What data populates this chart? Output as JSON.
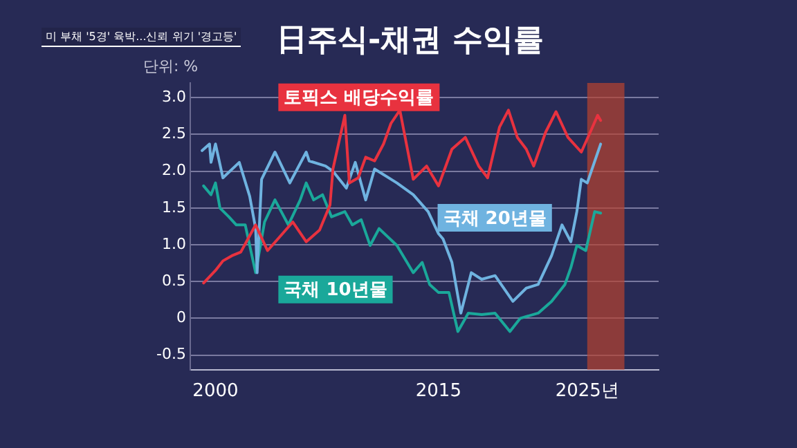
{
  "chart_data": {
    "type": "line",
    "title": "日주식-채권 수익률",
    "ylabel": "단위: %",
    "annotations": [
      "미 부채 '5경' 육박...신뢰 위기 '경고등'"
    ],
    "series": [
      {
        "name": "토픽스 배당수익률",
        "color": "#e8323f",
        "x": [
          1999.2,
          2000.0,
          2000.5,
          2001.1,
          2001.7,
          2002.7,
          2003.5,
          2004.2,
          2005.2,
          2006.1,
          2007.0,
          2007.7,
          2007.9,
          2008.7,
          2009.0,
          2009.6,
          2010.1,
          2010.7,
          2011.3,
          2011.8,
          2012.4,
          2013.3,
          2014.2,
          2015.0,
          2015.9,
          2016.8,
          2017.7,
          2018.3,
          2019.1,
          2019.7,
          2020.3,
          2020.9,
          2021.4,
          2022.2,
          2022.9,
          2023.7,
          2024.6,
          2025.2,
          2025.7,
          2025.9
        ],
        "values": [
          0.48,
          0.65,
          0.78,
          0.85,
          0.9,
          1.27,
          0.92,
          1.08,
          1.31,
          1.04,
          1.2,
          1.54,
          2.03,
          2.76,
          1.84,
          1.91,
          2.19,
          2.14,
          2.37,
          2.65,
          2.83,
          1.89,
          2.07,
          1.8,
          2.3,
          2.46,
          2.07,
          1.91,
          2.6,
          2.83,
          2.46,
          2.3,
          2.07,
          2.53,
          2.81,
          2.46,
          2.26,
          2.53,
          2.76,
          2.69
        ]
      },
      {
        "name": "국채 20년물",
        "color": "#6fb3e0",
        "x": [
          1999.1,
          1999.6,
          1999.7,
          2000.0,
          2000.5,
          2001.6,
          2002.3,
          2002.7,
          2002.8,
          2003.1,
          2004.0,
          2005.0,
          2006.1,
          2006.3,
          2007.4,
          2007.9,
          2008.8,
          2009.4,
          2010.1,
          2010.7,
          2012.2,
          2013.3,
          2014.3,
          2015.0,
          2015.3,
          2015.9,
          2016.5,
          2017.2,
          2017.9,
          2018.8,
          2020.0,
          2020.9,
          2021.7,
          2022.6,
          2023.3,
          2023.9,
          2024.3,
          2024.6,
          2025.0,
          2025.9
        ],
        "values": [
          2.28,
          2.37,
          2.12,
          2.37,
          1.91,
          2.12,
          1.66,
          1.22,
          0.62,
          1.89,
          2.26,
          1.84,
          2.26,
          2.14,
          2.07,
          2.0,
          1.77,
          2.12,
          1.61,
          2.03,
          1.84,
          1.68,
          1.45,
          1.15,
          1.08,
          0.76,
          0.07,
          0.62,
          0.53,
          0.58,
          0.23,
          0.41,
          0.46,
          0.85,
          1.27,
          1.04,
          1.45,
          1.89,
          1.84,
          2.37
        ]
      },
      {
        "name": "국채 10년물",
        "color": "#1aa89a",
        "x": [
          1999.2,
          1999.7,
          2000.0,
          2000.3,
          2000.9,
          2001.4,
          2002.0,
          2002.7,
          2003.3,
          2004.0,
          2004.9,
          2005.7,
          2006.1,
          2006.6,
          2007.2,
          2007.8,
          2008.7,
          2009.2,
          2009.8,
          2010.4,
          2011.0,
          2012.2,
          2013.3,
          2013.9,
          2014.4,
          2015.0,
          2015.7,
          2016.3,
          2017.0,
          2017.9,
          2018.8,
          2019.8,
          2020.5,
          2021.7,
          2022.6,
          2023.5,
          2023.9,
          2024.3,
          2024.9,
          2025.5,
          2025.9
        ],
        "values": [
          1.8,
          1.68,
          1.84,
          1.5,
          1.38,
          1.27,
          1.27,
          0.62,
          1.31,
          1.61,
          1.27,
          1.61,
          1.84,
          1.61,
          1.68,
          1.38,
          1.45,
          1.27,
          1.34,
          0.99,
          1.22,
          0.99,
          0.62,
          0.76,
          0.46,
          0.35,
          0.35,
          -0.18,
          0.07,
          0.05,
          0.07,
          -0.18,
          0.0,
          0.07,
          0.23,
          0.46,
          0.69,
          0.99,
          0.92,
          1.45,
          1.43
        ]
      }
    ],
    "xlim": [
      1998.3,
      2029.8
    ],
    "xticks": [
      2000,
      2015,
      {
        "value": 2025,
        "label": "2025년"
      }
    ],
    "ylim": [
      -0.7,
      3.2
    ],
    "yticks": [
      {
        "value": -0.5,
        "label": "-0.5"
      },
      0,
      {
        "value": 0.5,
        "label": "0.5"
      },
      {
        "value": 1,
        "label": "1.0"
      },
      {
        "value": 1.5,
        "label": "1.5"
      },
      {
        "value": 2,
        "label": "2.0"
      },
      {
        "value": 2.5,
        "label": "2.5"
      },
      {
        "value": 3,
        "label": "3.0"
      }
    ],
    "bands": [
      {
        "axis": "x",
        "from": 2025,
        "to": 2027.5,
        "color": "#b8432f"
      }
    ],
    "grid": "y",
    "legend": false,
    "marker": "none",
    "line_style": "solid"
  }
}
